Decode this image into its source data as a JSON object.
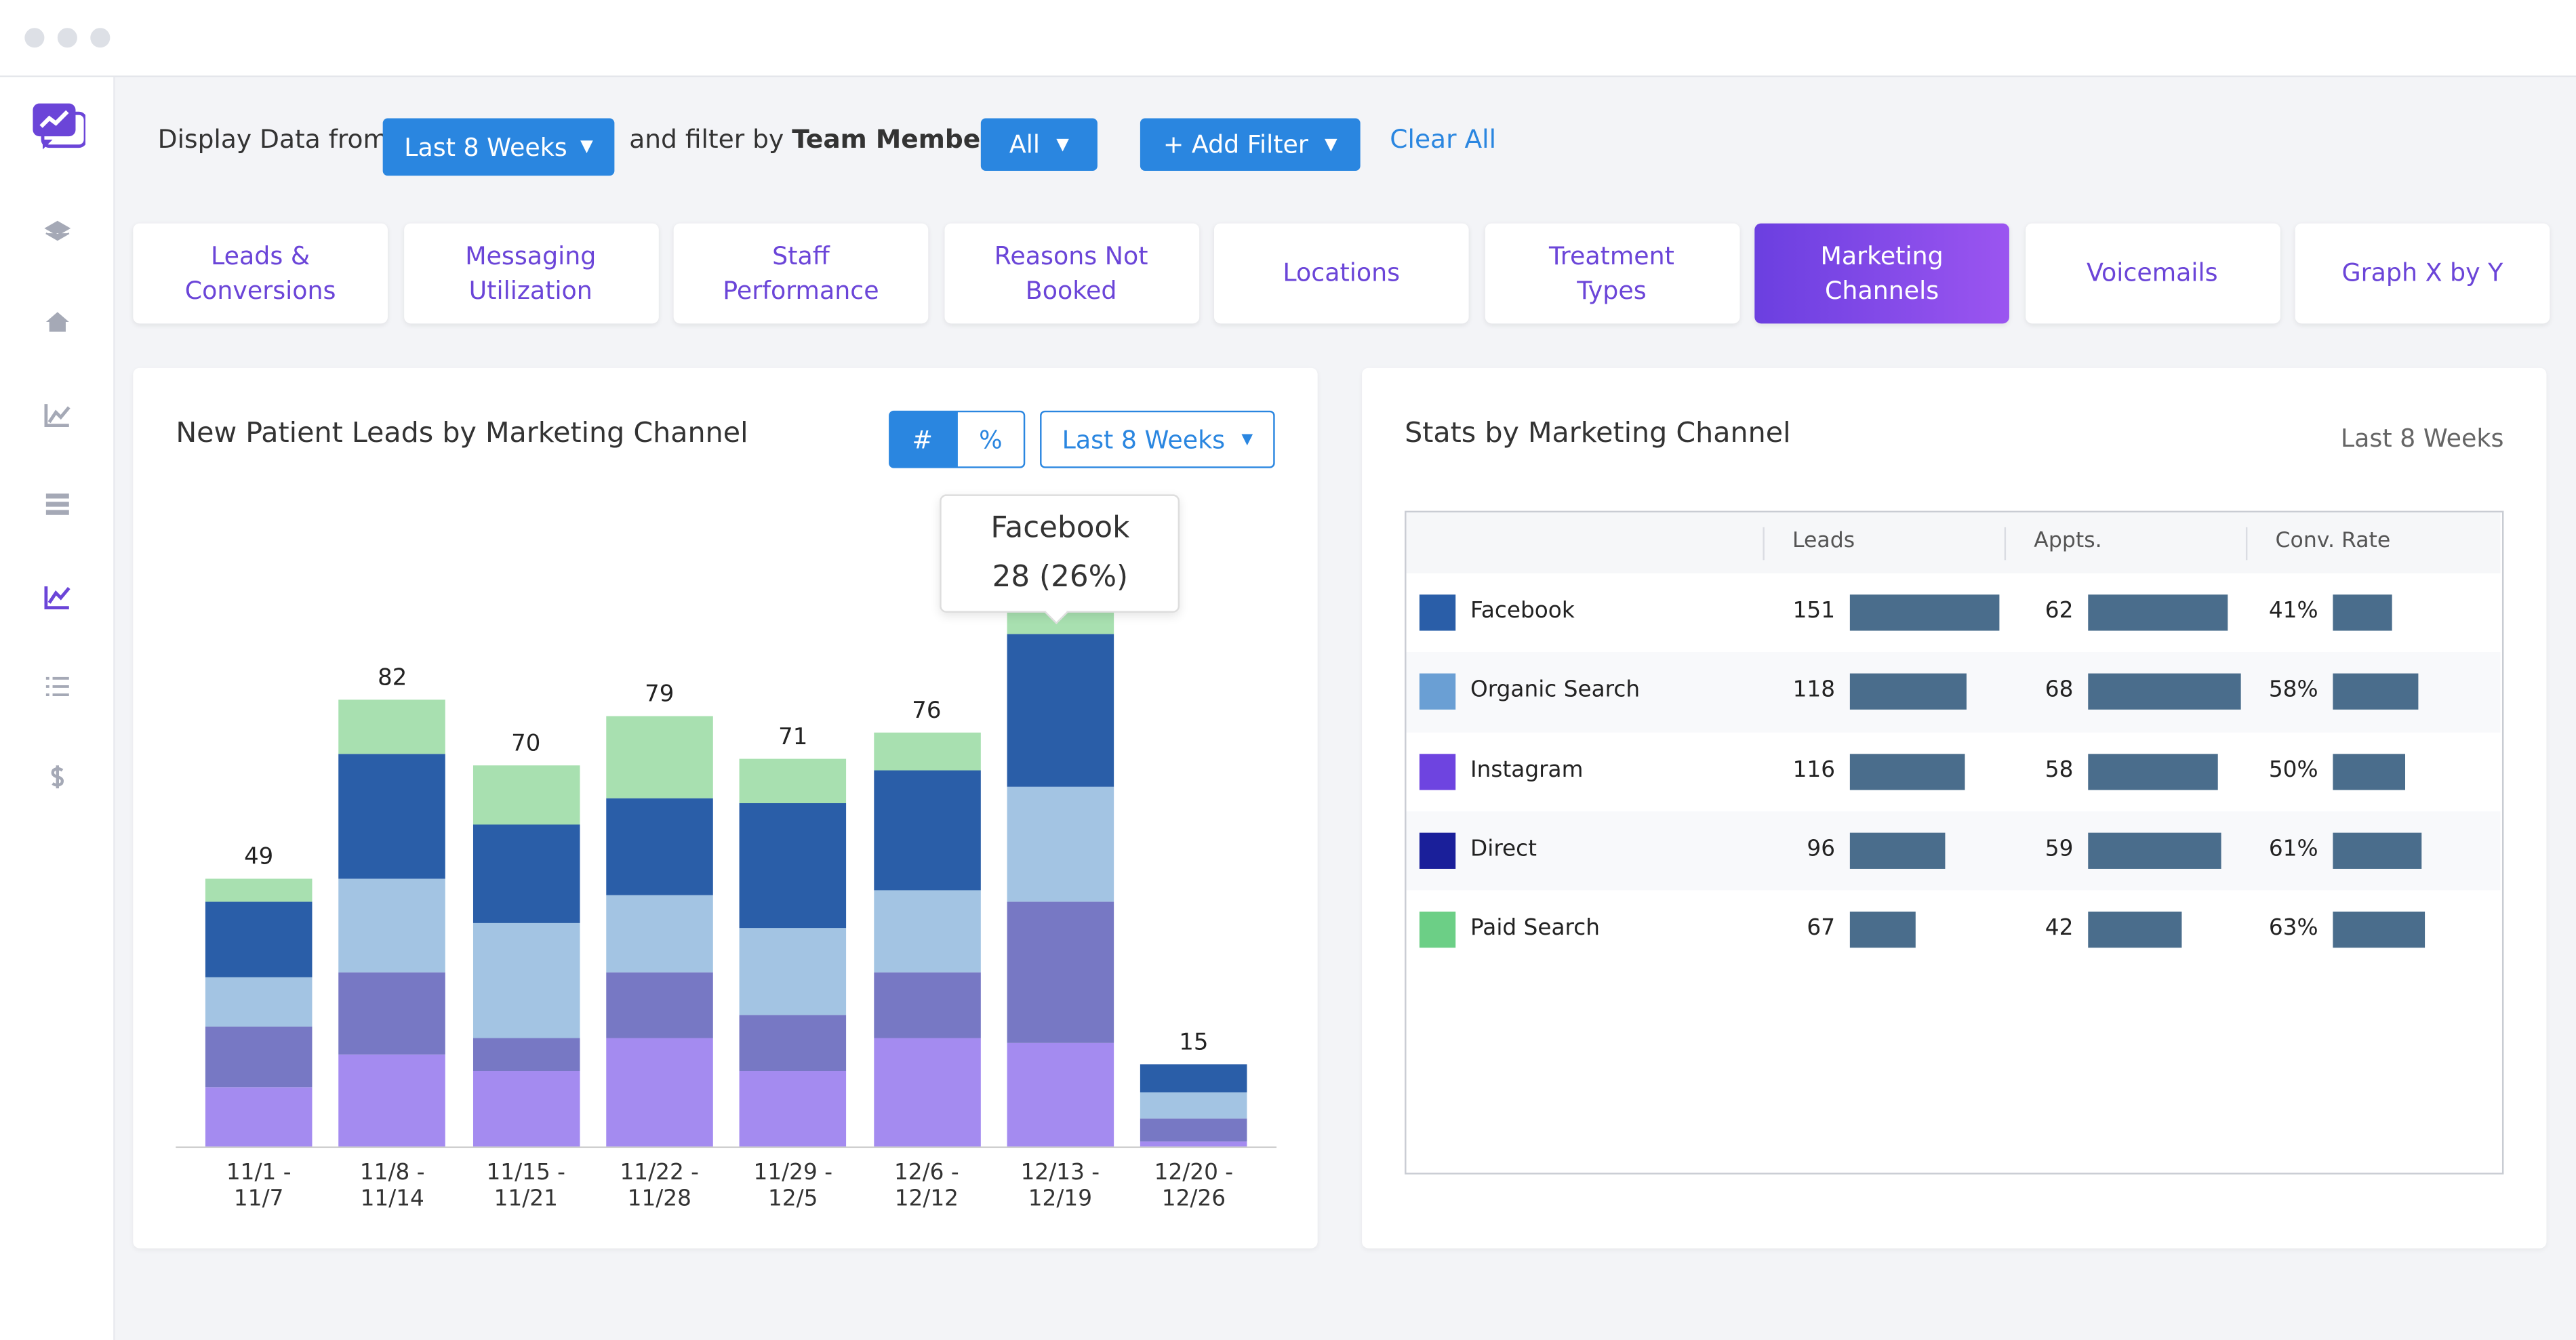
{
  "filters": {
    "display_label": "Display Data from",
    "period": "Last 8 Weeks",
    "filter_label": "and filter by",
    "filter_field": "Team Member",
    "member": "All",
    "add_filter": "+ Add Filter",
    "clear": "Clear All"
  },
  "tabs": [
    "Leads & Conversions",
    "Messaging Utilization",
    "Staff Performance",
    "Reasons Not Booked",
    "Locations",
    "Treatment Types",
    "Marketing Channels",
    "Voicemails",
    "Graph X by Y"
  ],
  "active_tab": 6,
  "chart_data": {
    "type": "stacked-bar",
    "title": "New Patient Leads by Marketing Channel",
    "toggle": [
      "#",
      "%"
    ],
    "period": "Last 8 Weeks",
    "categories": [
      "11/1 - 11/7",
      "11/8 - 11/14",
      "11/15 - 11/21",
      "11/22 - 11/28",
      "11/29 - 12/5",
      "12/6 - 12/12",
      "12/13 - 12/19",
      "12/20 - 12/26"
    ],
    "series": [
      {
        "name": "Instagram",
        "color": "#a48bf0",
        "values": [
          11,
          17,
          14,
          20,
          14,
          20,
          19,
          1
        ]
      },
      {
        "name": "Direct",
        "color": "#7778c4",
        "values": [
          11,
          15,
          6,
          12,
          10,
          12,
          26,
          4
        ]
      },
      {
        "name": "Organic Search",
        "color": "#a3c4e3",
        "values": [
          9,
          17,
          21,
          14,
          16,
          15,
          21,
          5
        ]
      },
      {
        "name": "Facebook",
        "color": "#2a5ea8",
        "values": [
          14,
          23,
          18,
          18,
          23,
          22,
          28,
          5
        ]
      },
      {
        "name": "Paid Search",
        "color": "#a8e0b0",
        "values": [
          4,
          10,
          11,
          15,
          8,
          7,
          12,
          0
        ]
      }
    ],
    "totals": [
      49,
      82,
      70,
      79,
      71,
      76,
      null,
      15
    ],
    "ylim": [
      0,
      110
    ],
    "tooltip": {
      "title": "Facebook",
      "label": "28 (26%)",
      "category": 6
    }
  },
  "stats": {
    "title": "Stats by Marketing Channel",
    "period": "Last 8 Weeks",
    "columns": [
      "Leads",
      "Appts.",
      "Conv. Rate"
    ],
    "rows": [
      {
        "name": "Facebook",
        "color": "#2a5ea8",
        "leads": 151,
        "appts": 62,
        "conv": 41,
        "conv_label": "41%"
      },
      {
        "name": "Organic Search",
        "color": "#6a9fd4",
        "leads": 118,
        "appts": 68,
        "conv": 58,
        "conv_label": "58%"
      },
      {
        "name": "Instagram",
        "color": "#6e44e0",
        "leads": 116,
        "appts": 58,
        "conv": 50,
        "conv_label": "50%"
      },
      {
        "name": "Direct",
        "color": "#1a1f9a",
        "leads": 96,
        "appts": 59,
        "conv": 61,
        "conv_label": "61%"
      },
      {
        "name": "Paid Search",
        "color": "#6ccf86",
        "leads": 67,
        "appts": 42,
        "conv": 63,
        "conv_label": "63%"
      }
    ]
  }
}
